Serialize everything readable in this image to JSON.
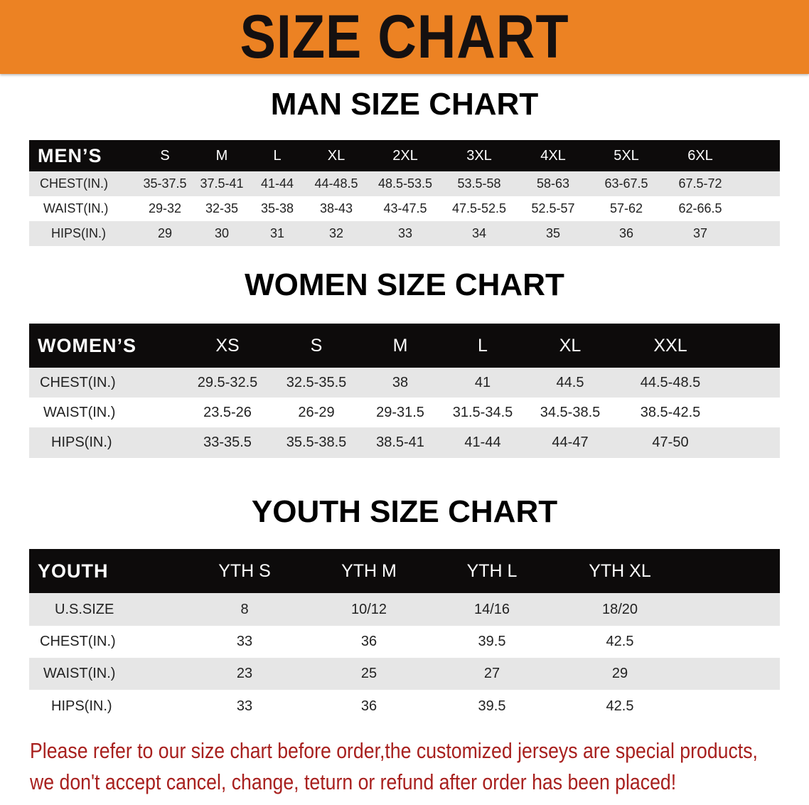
{
  "banner_title": "SIZE CHART",
  "men": {
    "title": "MAN SIZE CHART",
    "header": [
      "MEN’S",
      "S",
      "M",
      "L",
      "XL",
      "2XL",
      "3XL",
      "4XL",
      "5XL",
      "6XL"
    ],
    "rows": [
      [
        "CHEST(IN.)",
        "35-37.5",
        "37.5-41",
        "41-44",
        "44-48.5",
        "48.5-53.5",
        "53.5-58",
        "58-63",
        "63-67.5",
        "67.5-72"
      ],
      [
        "WAIST(IN.)",
        "29-32",
        "32-35",
        "35-38",
        "38-43",
        "43-47.5",
        "47.5-52.5",
        "52.5-57",
        "57-62",
        "62-66.5"
      ],
      [
        "HIPS(IN.)",
        "29",
        "30",
        "31",
        "32",
        "33",
        "34",
        "35",
        "36",
        "37"
      ]
    ]
  },
  "women": {
    "title": "WOMEN SIZE CHART",
    "header": [
      "WOMEN’S",
      "XS",
      "S",
      "M",
      "L",
      "XL",
      "XXL"
    ],
    "rows": [
      [
        "CHEST(IN.)",
        "29.5-32.5",
        "32.5-35.5",
        "38",
        "41",
        "44.5",
        "44.5-48.5"
      ],
      [
        "WAIST(IN.)",
        "23.5-26",
        "26-29",
        "29-31.5",
        "31.5-34.5",
        "34.5-38.5",
        "38.5-42.5"
      ],
      [
        "HIPS(IN.)",
        "33-35.5",
        "35.5-38.5",
        "38.5-41",
        "41-44",
        "44-47",
        "47-50"
      ]
    ]
  },
  "youth": {
    "title": "YOUTH SIZE CHART",
    "header": [
      "YOUTH",
      "YTH S",
      "YTH M",
      "YTH L",
      "YTH XL"
    ],
    "rows": [
      [
        "U.S.SIZE",
        "8",
        "10/12",
        "14/16",
        "18/20"
      ],
      [
        "CHEST(IN.)",
        "33",
        "36",
        "39.5",
        "42.5"
      ],
      [
        "WAIST(IN.)",
        "23",
        "25",
        "27",
        "29"
      ],
      [
        "HIPS(IN.)",
        "33",
        "36",
        "39.5",
        "42.5"
      ]
    ]
  },
  "footer": {
    "line1": "Please refer to our size chart before order,the customized jerseys are special products,",
    "line2": "we don't accept cancel, change, teturn or refund after order has been placed!"
  },
  "colors": {
    "banner": "#ec8223",
    "header_row": "#0d0b0b",
    "stripe": "#e6e6e6",
    "notice": "#a8201e"
  }
}
